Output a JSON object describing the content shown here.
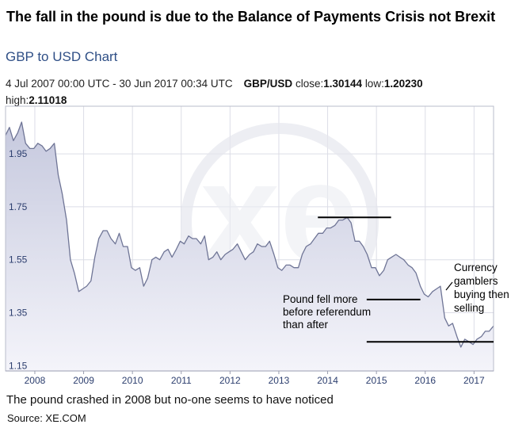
{
  "title": "The fall in the pound is due to the Balance of Payments Crisis not Brexit",
  "subtitle": "GBP to USD Chart",
  "info": {
    "date_range": "4 Jul 2007 00:00 UTC - 30 Jun 2017 00:34 UTC",
    "pair": "GBP/USD",
    "close_label": "close:",
    "close_value": "1.30144",
    "low_label": "low:",
    "low_value": "1.20230",
    "high_label": "high:",
    "high_value": "2.11018"
  },
  "caption": "The pound crashed in 2008 but no-one seems to have noticed",
  "source": "Source: XE.COM",
  "chart_data": {
    "type": "area",
    "title": "GBP to USD Chart",
    "xlabel": "",
    "ylabel": "",
    "xlim": [
      2007.5,
      2017.5
    ],
    "ylim": [
      1.13,
      2.13
    ],
    "yticks": [
      1.15,
      1.35,
      1.55,
      1.75,
      1.95
    ],
    "ytick_labels": [
      "1.15",
      "1.35",
      "1.55",
      "1.75",
      "1.95"
    ],
    "xtick_labels": [
      "2008",
      "2009",
      "2010",
      "2011",
      "2012",
      "2013",
      "2014",
      "2015",
      "2016",
      "2017"
    ],
    "xtick_values": [
      2008.1,
      2009.1,
      2010.1,
      2011.1,
      2012.1,
      2013.1,
      2014.1,
      2015.1,
      2016.1,
      2017.1
    ],
    "grid": true,
    "series": [
      {
        "name": "GBP/USD",
        "x": [
          2007.5,
          2007.58,
          2007.66,
          2007.75,
          2007.83,
          2007.91,
          2008.0,
          2008.08,
          2008.16,
          2008.25,
          2008.33,
          2008.41,
          2008.5,
          2008.58,
          2008.66,
          2008.75,
          2008.83,
          2008.91,
          2009.0,
          2009.08,
          2009.16,
          2009.25,
          2009.33,
          2009.41,
          2009.5,
          2009.58,
          2009.66,
          2009.75,
          2009.83,
          2009.91,
          2010.0,
          2010.08,
          2010.16,
          2010.25,
          2010.33,
          2010.41,
          2010.5,
          2010.58,
          2010.66,
          2010.75,
          2010.83,
          2010.91,
          2011.0,
          2011.08,
          2011.16,
          2011.25,
          2011.33,
          2011.41,
          2011.5,
          2011.58,
          2011.66,
          2011.75,
          2011.83,
          2011.91,
          2012.0,
          2012.08,
          2012.16,
          2012.25,
          2012.33,
          2012.41,
          2012.5,
          2012.58,
          2012.66,
          2012.75,
          2012.83,
          2012.91,
          2013.0,
          2013.08,
          2013.16,
          2013.25,
          2013.33,
          2013.41,
          2013.5,
          2013.58,
          2013.66,
          2013.75,
          2013.83,
          2013.91,
          2014.0,
          2014.08,
          2014.16,
          2014.25,
          2014.33,
          2014.41,
          2014.5,
          2014.58,
          2014.66,
          2014.75,
          2014.83,
          2014.91,
          2015.0,
          2015.08,
          2015.16,
          2015.25,
          2015.33,
          2015.41,
          2015.5,
          2015.58,
          2015.66,
          2015.75,
          2015.83,
          2015.91,
          2016.0,
          2016.08,
          2016.16,
          2016.25,
          2016.33,
          2016.41,
          2016.5,
          2016.58,
          2016.66,
          2016.75,
          2016.83,
          2016.91,
          2017.0,
          2017.08,
          2017.16,
          2017.25,
          2017.33,
          2017.41,
          2017.5
        ],
        "values": [
          2.02,
          2.05,
          2.0,
          2.03,
          2.07,
          1.99,
          1.97,
          1.97,
          1.99,
          1.98,
          1.96,
          1.97,
          1.99,
          1.87,
          1.8,
          1.7,
          1.55,
          1.5,
          1.43,
          1.44,
          1.45,
          1.47,
          1.56,
          1.63,
          1.66,
          1.66,
          1.63,
          1.61,
          1.65,
          1.6,
          1.6,
          1.52,
          1.51,
          1.52,
          1.45,
          1.48,
          1.55,
          1.56,
          1.55,
          1.58,
          1.59,
          1.56,
          1.59,
          1.62,
          1.61,
          1.64,
          1.63,
          1.63,
          1.61,
          1.64,
          1.55,
          1.56,
          1.58,
          1.55,
          1.57,
          1.58,
          1.59,
          1.61,
          1.58,
          1.55,
          1.57,
          1.58,
          1.61,
          1.6,
          1.6,
          1.62,
          1.57,
          1.52,
          1.51,
          1.53,
          1.53,
          1.52,
          1.52,
          1.57,
          1.6,
          1.61,
          1.63,
          1.65,
          1.65,
          1.67,
          1.67,
          1.68,
          1.7,
          1.7,
          1.71,
          1.69,
          1.62,
          1.62,
          1.6,
          1.57,
          1.52,
          1.52,
          1.49,
          1.51,
          1.55,
          1.56,
          1.57,
          1.56,
          1.55,
          1.53,
          1.52,
          1.5,
          1.45,
          1.42,
          1.41,
          1.43,
          1.44,
          1.45,
          1.33,
          1.3,
          1.31,
          1.26,
          1.22,
          1.25,
          1.24,
          1.23,
          1.25,
          1.26,
          1.28,
          1.28,
          1.3
        ]
      }
    ],
    "annotations": [
      {
        "text": "Pound fell more before referendum than after",
        "lines": [
          "Pound fell more",
          "before referendum",
          "than after"
        ]
      },
      {
        "text": "Currency gamblers buying then selling",
        "lines": [
          "Currency",
          "gamblers",
          "buying then",
          "selling"
        ]
      }
    ],
    "reference_lines": [
      {
        "y": 1.71,
        "x_start": 2013.9,
        "x_end": 2015.4
      },
      {
        "y": 1.4,
        "x_start": 2014.9,
        "x_end": 2016.0
      },
      {
        "y": 1.24,
        "x_start": 2014.9,
        "x_end": 2017.5
      }
    ],
    "watermark": "xe"
  }
}
